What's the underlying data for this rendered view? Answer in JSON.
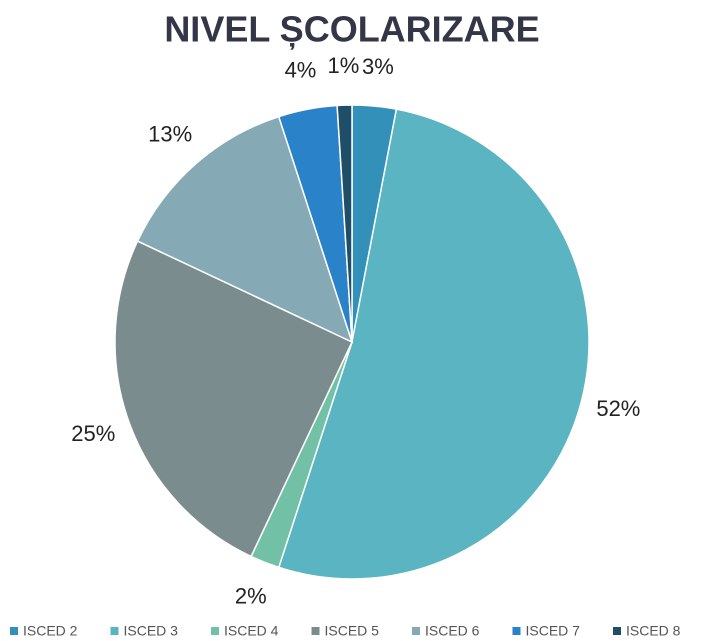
{
  "chart_data": {
    "type": "pie",
    "title": "NIVEL ȘCOLARIZARE",
    "categories": [
      "ISCED 2",
      "ISCED 3",
      "ISCED 4",
      "ISCED 5",
      "ISCED 6",
      "ISCED 7",
      "ISCED 8"
    ],
    "values": [
      3,
      52,
      2,
      25,
      13,
      4,
      1
    ],
    "value_labels": [
      "3%",
      "52%",
      "2%",
      "25%",
      "13%",
      "4%",
      "1%"
    ],
    "colors": [
      "#3390b8",
      "#5ab4c1",
      "#72c0a6",
      "#7a8c8e",
      "#86aab5",
      "#2a82c8",
      "#1e4e68"
    ],
    "legend": "bottom"
  }
}
